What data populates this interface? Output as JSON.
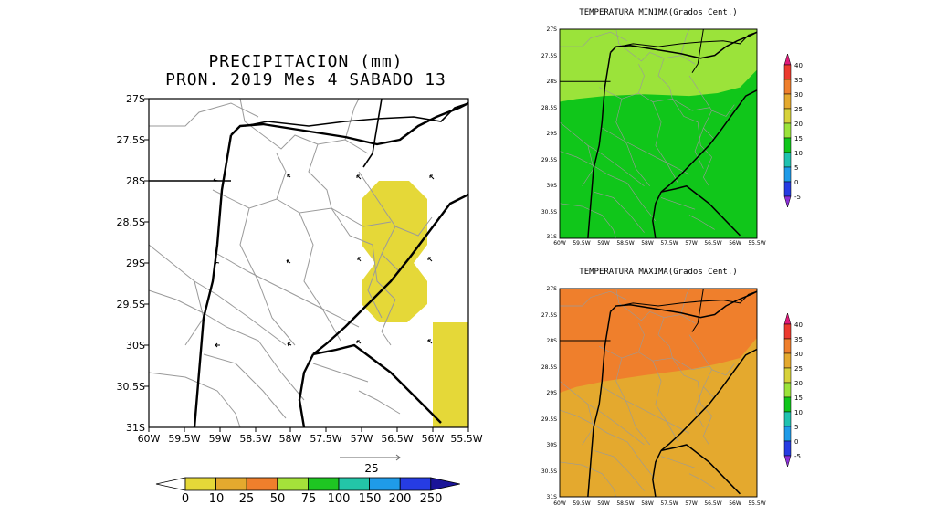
{
  "precip": {
    "title_line1": "PRECIPITACION (mm)",
    "title_line2": "PRON. 2019 Mes 4 SABADO 13",
    "lat_labels": [
      "27S",
      "27.5S",
      "28S",
      "28.5S",
      "29S",
      "29.5S",
      "30S",
      "30.5S",
      "31S"
    ],
    "lon_labels": [
      "60W",
      "59.5W",
      "59W",
      "58.5W",
      "58W",
      "57.5W",
      "57W",
      "56.5W",
      "56W",
      "55.5W"
    ],
    "vector_ref": "25",
    "colorbar": {
      "labels": [
        "0",
        "10",
        "25",
        "50",
        "75",
        "100",
        "150",
        "200",
        "250"
      ],
      "colors": [
        "#ffffff",
        "#e5d838",
        "#e4a92e",
        "#ef7f2c",
        "#a5e23a",
        "#1ec622",
        "#23c5a8",
        "#1f9be8",
        "#263ce3",
        "#1a1498"
      ]
    }
  },
  "tmin": {
    "title": "TEMPERATURA MINIMA(Grados Cent.)",
    "lat_labels": [
      "27S",
      "27.5S",
      "28S",
      "28.5S",
      "29S",
      "29.5S",
      "30S",
      "30.5S",
      "31S"
    ],
    "lon_labels": [
      "60W",
      "59.5W",
      "59W",
      "58.5W",
      "58W",
      "57.5W",
      "57W",
      "56.5W",
      "56W",
      "55.5W"
    ],
    "colors": {
      "upper": "#9be33a",
      "lower": "#10c61a"
    }
  },
  "tmax": {
    "title": "TEMPERATURA MAXIMA(Grados Cent.)",
    "lat_labels": [
      "27S",
      "27.5S",
      "28S",
      "28.5S",
      "29S",
      "29.5S",
      "30S",
      "30.5S",
      "31S"
    ],
    "lon_labels": [
      "60W",
      "59.5W",
      "59W",
      "58.5W",
      "58W",
      "57.5W",
      "57W",
      "56.5W",
      "56W",
      "55.5W"
    ],
    "colors": {
      "upper": "#ef7f2c",
      "lower": "#e4a92e"
    }
  },
  "temp_colorbar": {
    "labels": [
      "40",
      "35",
      "30",
      "25",
      "20",
      "15",
      "10",
      "5",
      "0",
      "-5"
    ],
    "colors": [
      "#e0197a",
      "#ec3a2e",
      "#ef7f2c",
      "#e4a92e",
      "#d7d23a",
      "#9be33a",
      "#10c61a",
      "#20c2b0",
      "#1f9be8",
      "#263ce3",
      "#8a2fd6"
    ]
  }
}
